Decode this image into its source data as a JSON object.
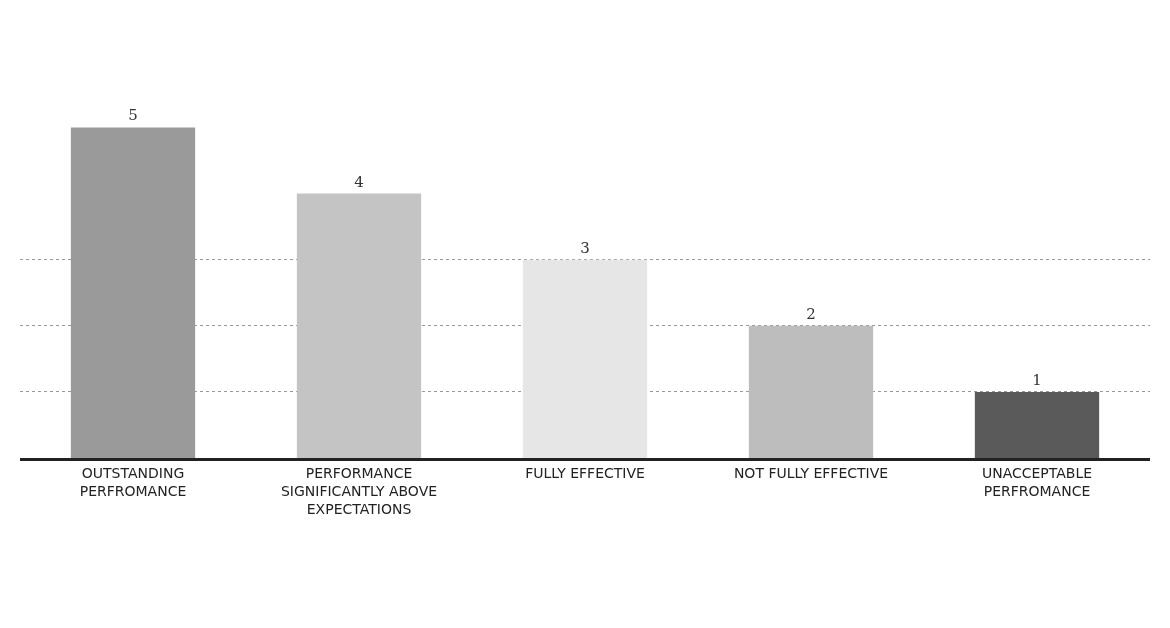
{
  "chart_data": {
    "type": "bar",
    "categories": [
      "OUTSTANDING PERFROMANCE",
      "PERFORMANCE SIGNIFICANTLY ABOVE EXPECTATIONS",
      "FULLY EFFECTIVE",
      "NOT FULLY EFFECTIVE",
      "UNACCEPTABLE PERFROMANCE"
    ],
    "values": [
      5,
      4,
      3,
      2,
      1
    ],
    "colors": [
      "#9a9a9a",
      "#c4c4c4",
      "#e6e6e6",
      "#bdbdbd",
      "#5a5a5a"
    ],
    "data_labels": true,
    "yticks": [
      {
        "value": 1,
        "label": null
      },
      {
        "value": 2,
        "label": null
      },
      {
        "value": 3,
        "label": null
      }
    ],
    "grid": "y"
  }
}
